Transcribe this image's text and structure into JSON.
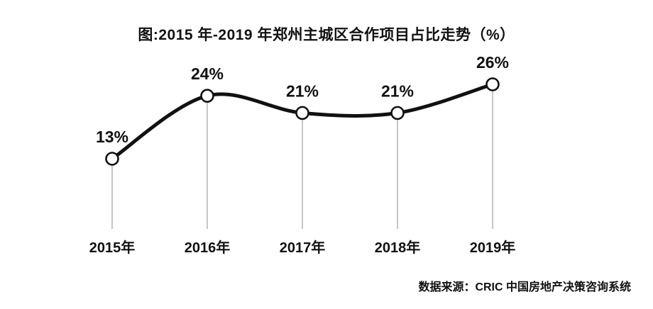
{
  "chart_data": {
    "type": "line",
    "title": "图:2015 年-2019 年郑州主城区合作项目占比走势（%）",
    "source": "数据来源：CRIC 中国房地产决策咨询系统",
    "categories": [
      "2015年",
      "2016年",
      "2017年",
      "2018年",
      "2019年"
    ],
    "values": [
      13,
      24,
      21,
      21,
      26
    ],
    "data_labels": [
      "13%",
      "24%",
      "21%",
      "21%",
      "26%"
    ],
    "ylim": [
      10,
      28
    ],
    "grid": false,
    "legend": "none",
    "line_style": "smooth",
    "marker": "open-circle",
    "colors": {
      "line": "#111111",
      "marker_fill": "#ffffff",
      "marker_stroke": "#111111",
      "drop_line": "#a0a0a0",
      "text": "#111111"
    }
  }
}
